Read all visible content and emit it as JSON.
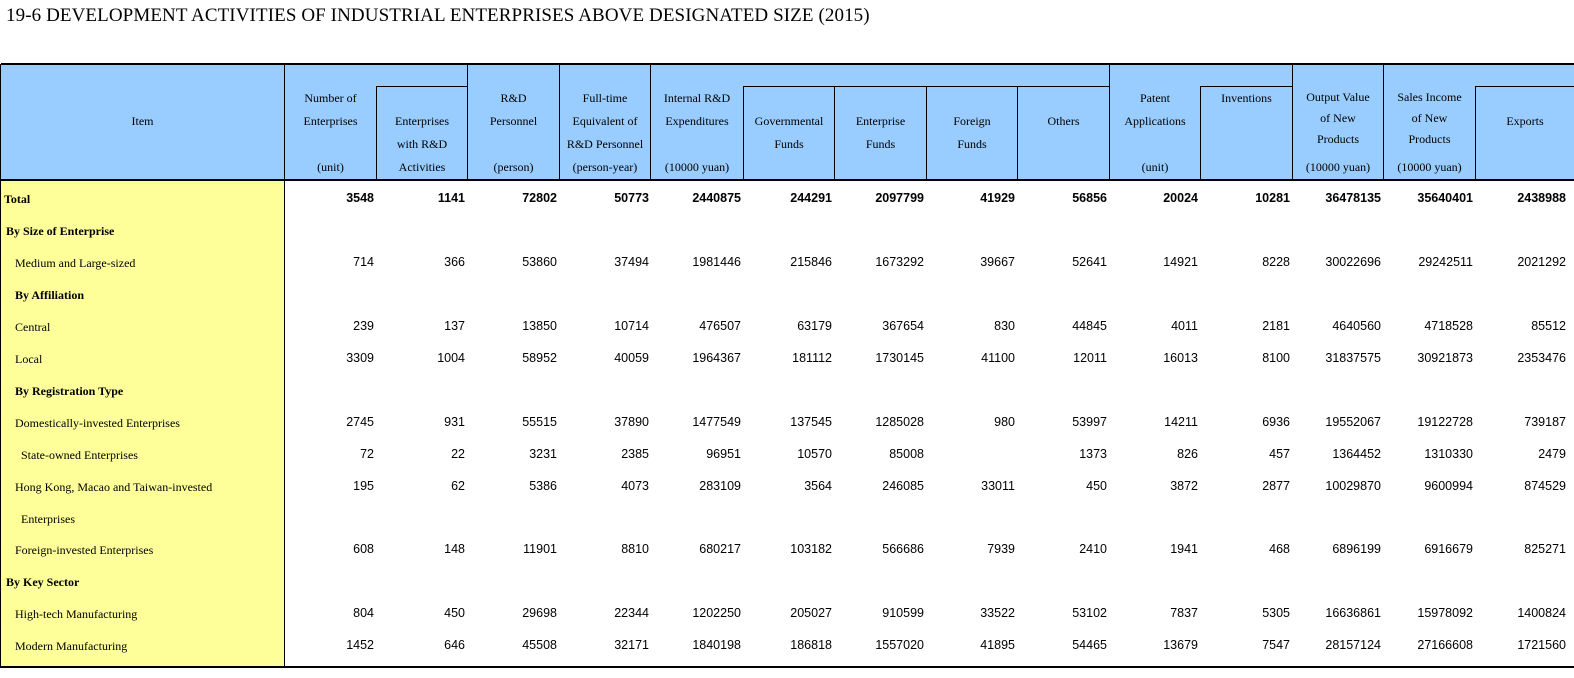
{
  "title": "19-6  DEVELOPMENT ACTIVITIES OF INDUSTRIAL ENTERPRISES ABOVE DESIGNATED SIZE (2015)",
  "header": {
    "item": "Item",
    "num_enterprises": [
      "Number of",
      "Enterprises"
    ],
    "num_enterprises_unit": "(unit)",
    "rd_enterprises": [
      "Enterprises",
      "with R&D",
      "Activities"
    ],
    "rd_personnel": [
      "R&D",
      "Personnel"
    ],
    "rd_personnel_unit": "(person)",
    "fte": [
      "Full-time",
      "Equivalent of",
      "R&D Personnel"
    ],
    "fte_unit": "(person-year)",
    "internal_rd": [
      "Internal R&D",
      "Expenditures"
    ],
    "internal_rd_unit": "(10000 yuan)",
    "gov_funds": [
      "Governmental",
      "Funds"
    ],
    "ent_funds": [
      "Enterprise",
      "Funds"
    ],
    "foreign_funds": [
      "Foreign",
      "Funds"
    ],
    "others": "Others",
    "patent": [
      "Patent",
      "Applications"
    ],
    "patent_unit": "(unit)",
    "inventions": "Inventions",
    "output_value": [
      "Output Value",
      "of New",
      "Products"
    ],
    "output_value_unit": "(10000 yuan)",
    "sales_income": [
      "Sales Income",
      "of New",
      "Products"
    ],
    "sales_income_unit": "(10000 yuan)",
    "exports": "Exports"
  },
  "rows": [
    {
      "label": "Total",
      "bold": true,
      "indent": 0,
      "values": [
        "3548",
        "1141",
        "72802",
        "50773",
        "2440875",
        "244291",
        "2097799",
        "41929",
        "56856",
        "20024",
        "10281",
        "36478135",
        "35640401",
        "2438988"
      ]
    },
    {
      "label": "By Size of Enterprise",
      "bold": true,
      "indent": 1,
      "values": []
    },
    {
      "label": "Medium and Large-sized",
      "bold": false,
      "indent": 2,
      "values": [
        "714",
        "366",
        "53860",
        "37494",
        "1981446",
        "215846",
        "1673292",
        "39667",
        "52641",
        "14921",
        "8228",
        "30022696",
        "29242511",
        "2021292"
      ]
    },
    {
      "label": "By Affiliation",
      "bold": true,
      "indent": 2,
      "values": []
    },
    {
      "label": "Central",
      "bold": false,
      "indent": 2,
      "values": [
        "239",
        "137",
        "13850",
        "10714",
        "476507",
        "63179",
        "367654",
        "830",
        "44845",
        "4011",
        "2181",
        "4640560",
        "4718528",
        "85512"
      ]
    },
    {
      "label": "Local",
      "bold": false,
      "indent": 2,
      "values": [
        "3309",
        "1004",
        "58952",
        "40059",
        "1964367",
        "181112",
        "1730145",
        "41100",
        "12011",
        "16013",
        "8100",
        "31837575",
        "30921873",
        "2353476"
      ]
    },
    {
      "label": "By Registration Type",
      "bold": true,
      "indent": 2,
      "values": []
    },
    {
      "label": "Domestically-invested Enterprises",
      "bold": false,
      "indent": 2,
      "values": [
        "2745",
        "931",
        "55515",
        "37890",
        "1477549",
        "137545",
        "1285028",
        "980",
        "53997",
        "14211",
        "6936",
        "19552067",
        "19122728",
        "739187"
      ]
    },
    {
      "label": "State-owned Enterprises",
      "bold": false,
      "indent": 3,
      "values": [
        "72",
        "22",
        "3231",
        "2385",
        "96951",
        "10570",
        "85008",
        "",
        "1373",
        "826",
        "457",
        "1364452",
        "1310330",
        "2479"
      ]
    },
    {
      "label": "Hong Kong, Macao and Taiwan-invested",
      "bold": false,
      "indent": 2,
      "values": [
        "195",
        "62",
        "5386",
        "4073",
        "283109",
        "3564",
        "246085",
        "33011",
        "450",
        "3872",
        "2877",
        "10029870",
        "9600994",
        "874529"
      ]
    },
    {
      "label": "Enterprises",
      "bold": false,
      "indent": 3,
      "values": []
    },
    {
      "label": "Foreign-invested Enterprises",
      "bold": false,
      "indent": 2,
      "values": [
        "608",
        "148",
        "11901",
        "8810",
        "680217",
        "103182",
        "566686",
        "7939",
        "2410",
        "1941",
        "468",
        "6896199",
        "6916679",
        "825271"
      ]
    },
    {
      "label": "By Key Sector",
      "bold": true,
      "indent": 1,
      "values": []
    },
    {
      "label": "High-tech Manufacturing",
      "bold": false,
      "indent": 2,
      "values": [
        "804",
        "450",
        "29698",
        "22344",
        "1202250",
        "205027",
        "910599",
        "33522",
        "53102",
        "7837",
        "5305",
        "16636861",
        "15978092",
        "1400824"
      ]
    },
    {
      "label": "Modern Manufacturing",
      "bold": false,
      "indent": 2,
      "values": [
        "1452",
        "646",
        "45508",
        "32171",
        "1840198",
        "186818",
        "1557020",
        "41895",
        "54465",
        "13679",
        "7547",
        "28157124",
        "27166608",
        "1721560"
      ]
    }
  ]
}
